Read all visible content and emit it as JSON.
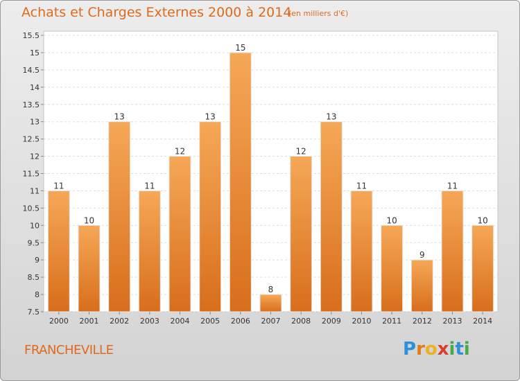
{
  "title": "Achats et Charges Externes 2000 à 2014",
  "subtitle": "(en milliers d'€)",
  "commune": "FRANCHEVILLE",
  "logo": {
    "text": "Proxiti",
    "parts": [
      "P",
      "r",
      "o",
      "x",
      "i",
      "t",
      "i"
    ]
  },
  "colors": {
    "title": "#e06a1c",
    "bar_top": "#f5a857",
    "bar_bottom": "#d86e1c",
    "background": "#e4e4e4"
  },
  "chart_data": {
    "type": "bar",
    "categories": [
      "2000",
      "2001",
      "2002",
      "2003",
      "2004",
      "2005",
      "2006",
      "2007",
      "2008",
      "2009",
      "2010",
      "2011",
      "2012",
      "2013",
      "2014"
    ],
    "values": [
      11,
      10,
      13,
      11,
      12,
      13,
      15,
      8,
      12,
      13,
      11,
      10,
      9,
      11,
      10
    ],
    "data_labels": [
      "11",
      "10",
      "13",
      "11",
      "12",
      "13",
      "15",
      "8",
      "12",
      "13",
      "11",
      "10",
      "9",
      "11",
      "10"
    ],
    "y_ticks": [
      "7.5",
      "8",
      "8.5",
      "9",
      "9.5",
      "10",
      "10.5",
      "11",
      "11.5",
      "12",
      "12.5",
      "13",
      "13.5",
      "14",
      "14.5",
      "15",
      "15.5"
    ],
    "ylim": [
      7.5,
      15.5
    ],
    "grid": true,
    "title": "Achats et Charges Externes 2000 à 2014",
    "xlabel": "",
    "ylabel": ""
  }
}
